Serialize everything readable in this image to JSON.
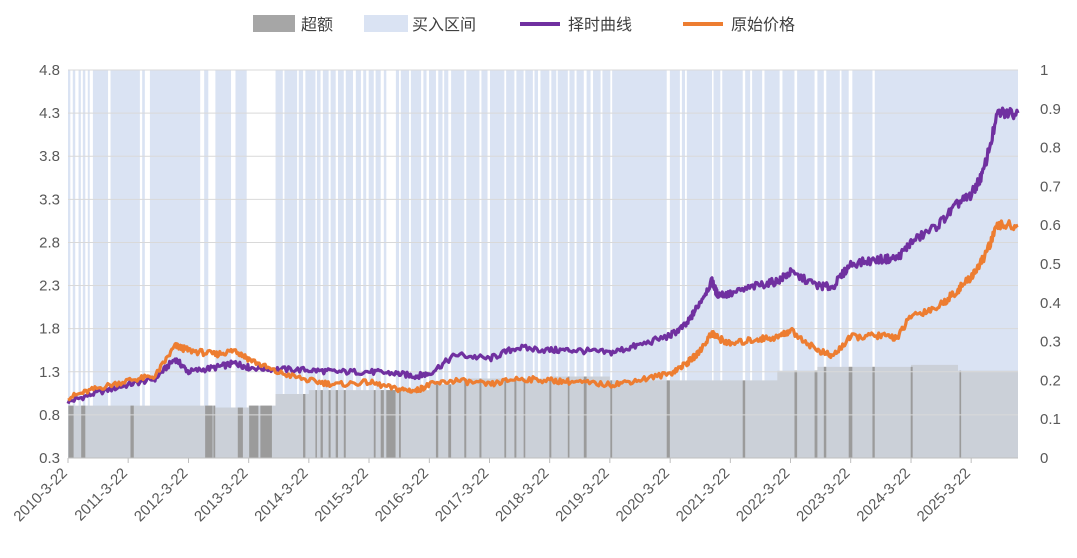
{
  "chart_data": {
    "type": "line",
    "legend_position": "top",
    "legend": [
      {
        "name": "超额",
        "color": "#a6a6a6",
        "kind": "area"
      },
      {
        "name": "买入区间",
        "color": "#dae3f3",
        "kind": "band"
      },
      {
        "name": "择时曲线",
        "color": "#7030a0",
        "kind": "line"
      },
      {
        "name": "原始价格",
        "color": "#ed7d31",
        "kind": "line"
      }
    ],
    "x_tick_labels": [
      "2010-3-22",
      "2011-3-22",
      "2012-3-22",
      "2013-3-22",
      "2014-3-22",
      "2015-3-22",
      "2016-3-22",
      "2017-3-22",
      "2018-3-22",
      "2019-3-22",
      "2020-3-22",
      "2021-3-22",
      "2022-3-22",
      "2023-3-22",
      "2024-3-22",
      "2025-3-22"
    ],
    "x_range": [
      "2010-03-22",
      "2025-12-31"
    ],
    "y_left": {
      "min": 0.3,
      "max": 4.8,
      "ticks": [
        "0.3",
        "0.8",
        "1.3",
        "1.8",
        "2.3",
        "2.8",
        "3.3",
        "3.8",
        "4.3",
        "4.8"
      ]
    },
    "y_right": {
      "min": 0,
      "max": 1,
      "ticks": [
        "0",
        "0.1",
        "0.2",
        "0.3",
        "0.4",
        "0.5",
        "0.6",
        "0.7",
        "0.8",
        "0.9",
        "1"
      ]
    },
    "grid": "horizontal",
    "series": [
      {
        "name": "择时曲线",
        "axis": "left",
        "color": "#7030a0",
        "x": [
          "2010-03-22",
          "2010-09-01",
          "2011-03-22",
          "2011-09-01",
          "2012-01-01",
          "2012-03-22",
          "2012-09-01",
          "2013-01-01",
          "2013-03-22",
          "2013-09-01",
          "2014-03-22",
          "2014-09-01",
          "2015-03-22",
          "2015-09-01",
          "2016-01-01",
          "2016-03-22",
          "2016-09-01",
          "2017-03-22",
          "2017-09-01",
          "2018-03-22",
          "2018-09-01",
          "2019-03-22",
          "2019-09-01",
          "2020-03-22",
          "2020-07-01",
          "2020-09-01",
          "2020-12-01",
          "2021-01-01",
          "2021-03-22",
          "2021-09-01",
          "2022-01-01",
          "2022-03-22",
          "2022-09-01",
          "2022-12-01",
          "2023-03-22",
          "2023-09-01",
          "2024-01-01",
          "2024-03-22",
          "2024-09-01",
          "2025-01-01",
          "2025-03-22",
          "2025-06-01",
          "2025-09-01",
          "2025-12-31"
        ],
        "y": [
          0.95,
          1.05,
          1.15,
          1.22,
          1.45,
          1.3,
          1.35,
          1.4,
          1.35,
          1.33,
          1.32,
          1.3,
          1.3,
          1.28,
          1.25,
          1.28,
          1.5,
          1.45,
          1.58,
          1.55,
          1.55,
          1.52,
          1.6,
          1.72,
          1.85,
          2.05,
          2.35,
          2.2,
          2.2,
          2.3,
          2.35,
          2.45,
          2.3,
          2.28,
          2.55,
          2.6,
          2.62,
          2.8,
          3.0,
          3.25,
          3.35,
          3.6,
          4.3,
          4.3
        ]
      },
      {
        "name": "原始价格",
        "axis": "left",
        "color": "#ed7d31",
        "x": [
          "2010-03-22",
          "2010-09-01",
          "2011-03-22",
          "2011-09-01",
          "2012-01-01",
          "2012-03-22",
          "2012-09-01",
          "2013-01-01",
          "2013-03-22",
          "2013-09-01",
          "2014-03-22",
          "2014-09-01",
          "2015-03-22",
          "2015-09-01",
          "2016-01-01",
          "2016-03-22",
          "2016-09-01",
          "2017-03-22",
          "2017-09-01",
          "2018-03-22",
          "2018-09-01",
          "2019-03-22",
          "2019-09-01",
          "2020-03-22",
          "2020-07-01",
          "2020-09-01",
          "2020-12-01",
          "2021-01-01",
          "2021-03-22",
          "2021-09-01",
          "2022-01-01",
          "2022-03-22",
          "2022-09-01",
          "2022-12-01",
          "2023-03-22",
          "2023-09-01",
          "2024-01-01",
          "2024-03-22",
          "2024-09-01",
          "2025-01-01",
          "2025-03-22",
          "2025-06-01",
          "2025-09-01",
          "2025-12-31"
        ],
        "y": [
          1.0,
          1.1,
          1.2,
          1.25,
          1.6,
          1.55,
          1.5,
          1.55,
          1.45,
          1.3,
          1.2,
          1.15,
          1.18,
          1.1,
          1.08,
          1.15,
          1.2,
          1.15,
          1.22,
          1.2,
          1.18,
          1.15,
          1.2,
          1.28,
          1.4,
          1.5,
          1.75,
          1.7,
          1.62,
          1.68,
          1.7,
          1.78,
          1.55,
          1.48,
          1.7,
          1.72,
          1.7,
          1.95,
          2.05,
          2.25,
          2.4,
          2.6,
          3.0,
          3.0
        ]
      },
      {
        "name": "超额",
        "axis": "right",
        "color": "#a6a6a6",
        "x": [
          "2010-03-22",
          "2011-03-22",
          "2012-03-22",
          "2012-09-01",
          "2013-03-22",
          "2013-09-01",
          "2014-03-22",
          "2015-03-22",
          "2016-03-22",
          "2016-09-01",
          "2017-03-22",
          "2018-03-22",
          "2019-03-22",
          "2020-03-22",
          "2021-03-22",
          "2022-01-01",
          "2022-09-01",
          "2023-03-22",
          "2024-03-22",
          "2025-01-01",
          "2025-12-31"
        ],
        "y": [
          0.135,
          0.135,
          0.135,
          0.13,
          0.135,
          0.165,
          0.175,
          0.175,
          0.19,
          0.205,
          0.205,
          0.21,
          0.2,
          0.2,
          0.2,
          0.225,
          0.235,
          0.235,
          0.24,
          0.225,
          0.225
        ]
      }
    ],
    "buy_intervals": [
      [
        "2010-03-22",
        "2010-04-05"
      ],
      [
        "2010-04-20",
        "2010-05-05"
      ],
      [
        "2010-05-25",
        "2010-06-08"
      ],
      [
        "2010-06-20",
        "2010-07-05"
      ],
      [
        "2010-07-20",
        "2010-08-01"
      ],
      [
        "2010-08-20",
        "2010-11-20"
      ],
      [
        "2010-12-05",
        "2011-06-01"
      ],
      [
        "2011-06-15",
        "2011-07-01"
      ],
      [
        "2011-08-01",
        "2012-06-01"
      ],
      [
        "2012-06-25",
        "2012-07-20"
      ],
      [
        "2012-09-01",
        "2012-12-05"
      ],
      [
        "2013-01-01",
        "2013-03-10"
      ],
      [
        "2013-09-01",
        "2013-10-15"
      ],
      [
        "2013-10-25",
        "2014-01-10"
      ],
      [
        "2014-01-20",
        "2014-02-15"
      ],
      [
        "2014-03-01",
        "2014-05-01"
      ],
      [
        "2014-05-10",
        "2014-06-01"
      ],
      [
        "2014-06-15",
        "2014-07-20"
      ],
      [
        "2014-08-01",
        "2014-09-01"
      ],
      [
        "2014-09-15",
        "2014-10-20"
      ],
      [
        "2014-11-01",
        "2014-12-15"
      ],
      [
        "2015-01-01",
        "2015-02-01"
      ],
      [
        "2015-02-15",
        "2015-03-05"
      ],
      [
        "2015-03-20",
        "2015-04-20"
      ],
      [
        "2015-05-01",
        "2015-06-01"
      ],
      [
        "2015-06-20",
        "2015-07-05"
      ],
      [
        "2015-09-01",
        "2015-09-20"
      ],
      [
        "2015-10-01",
        "2015-11-20"
      ],
      [
        "2015-12-01",
        "2016-02-01"
      ],
      [
        "2016-02-15",
        "2016-03-05"
      ],
      [
        "2016-03-20",
        "2016-05-01"
      ],
      [
        "2016-05-15",
        "2016-06-10"
      ],
      [
        "2016-06-20",
        "2016-07-15"
      ],
      [
        "2016-08-01",
        "2016-10-20"
      ],
      [
        "2016-11-01",
        "2017-01-20"
      ],
      [
        "2017-02-01",
        "2017-03-10"
      ],
      [
        "2017-03-25",
        "2017-06-20"
      ],
      [
        "2017-07-01",
        "2017-08-20"
      ],
      [
        "2017-09-01",
        "2017-10-15"
      ],
      [
        "2017-10-25",
        "2017-12-10"
      ],
      [
        "2017-12-20",
        "2018-01-10"
      ],
      [
        "2018-01-25",
        "2018-03-20"
      ],
      [
        "2018-04-01",
        "2018-05-01"
      ],
      [
        "2018-05-10",
        "2018-07-10"
      ],
      [
        "2018-07-20",
        "2018-08-20"
      ],
      [
        "2018-09-01",
        "2018-10-15"
      ],
      [
        "2018-11-01",
        "2018-11-25"
      ],
      [
        "2018-12-10",
        "2019-01-25"
      ],
      [
        "2019-02-05",
        "2019-03-25"
      ],
      [
        "2019-04-05",
        "2020-03-01"
      ],
      [
        "2020-03-20",
        "2020-05-20"
      ],
      [
        "2020-06-01",
        "2020-06-20"
      ],
      [
        "2020-07-01",
        "2020-12-01"
      ],
      [
        "2020-12-10",
        "2021-01-20"
      ],
      [
        "2021-02-01",
        "2021-06-05"
      ],
      [
        "2021-06-20",
        "2021-07-20"
      ],
      [
        "2021-08-01",
        "2021-10-01"
      ],
      [
        "2021-10-15",
        "2022-01-15"
      ],
      [
        "2022-02-01",
        "2022-04-15"
      ],
      [
        "2022-05-01",
        "2022-08-15"
      ],
      [
        "2022-09-01",
        "2022-10-10"
      ],
      [
        "2022-10-25",
        "2023-01-15"
      ],
      [
        "2023-01-25",
        "2023-03-10"
      ],
      [
        "2023-04-01",
        "2023-08-01"
      ],
      [
        "2023-08-15",
        "2025-12-31"
      ]
    ],
    "excess_detail_intervals": [
      [
        "2010-03-25",
        "2010-04-25"
      ],
      [
        "2010-06-10",
        "2010-07-05"
      ],
      [
        "2011-04-05",
        "2011-04-25"
      ],
      [
        "2012-07-01",
        "2012-08-15"
      ],
      [
        "2012-08-20",
        "2012-08-31"
      ],
      [
        "2013-01-15",
        "2013-02-15"
      ],
      [
        "2013-03-25",
        "2013-05-20"
      ],
      [
        "2013-06-01",
        "2013-08-10"
      ],
      [
        "2014-02-15",
        "2014-03-01"
      ],
      [
        "2014-05-01",
        "2014-05-10"
      ],
      [
        "2014-06-01",
        "2014-06-15"
      ],
      [
        "2014-07-20",
        "2014-08-01"
      ],
      [
        "2014-09-01",
        "2014-09-15"
      ],
      [
        "2014-10-20",
        "2014-11-01"
      ],
      [
        "2015-04-20",
        "2015-05-01"
      ],
      [
        "2015-06-01",
        "2015-06-20"
      ],
      [
        "2015-07-05",
        "2015-08-30"
      ],
      [
        "2015-09-20",
        "2015-10-01"
      ],
      [
        "2016-05-01",
        "2016-05-15"
      ],
      [
        "2016-07-15",
        "2016-08-01"
      ],
      [
        "2016-10-20",
        "2016-11-01"
      ],
      [
        "2017-01-20",
        "2017-02-01"
      ],
      [
        "2017-06-20",
        "2017-07-01"
      ],
      [
        "2017-08-20",
        "2017-09-01"
      ],
      [
        "2017-10-15",
        "2017-10-25"
      ],
      [
        "2018-03-20",
        "2018-04-01"
      ],
      [
        "2018-07-10",
        "2018-07-20"
      ],
      [
        "2018-10-15",
        "2018-11-01"
      ],
      [
        "2019-03-25",
        "2019-04-05"
      ],
      [
        "2020-03-01",
        "2020-03-20"
      ],
      [
        "2021-06-05",
        "2021-06-20"
      ],
      [
        "2022-04-15",
        "2022-05-01"
      ],
      [
        "2022-08-15",
        "2022-09-01"
      ],
      [
        "2022-10-10",
        "2022-10-25"
      ],
      [
        "2023-03-10",
        "2023-04-01"
      ],
      [
        "2023-08-01",
        "2023-08-15"
      ],
      [
        "2024-03-20",
        "2024-04-01"
      ],
      [
        "2025-01-10",
        "2025-01-20"
      ]
    ]
  }
}
